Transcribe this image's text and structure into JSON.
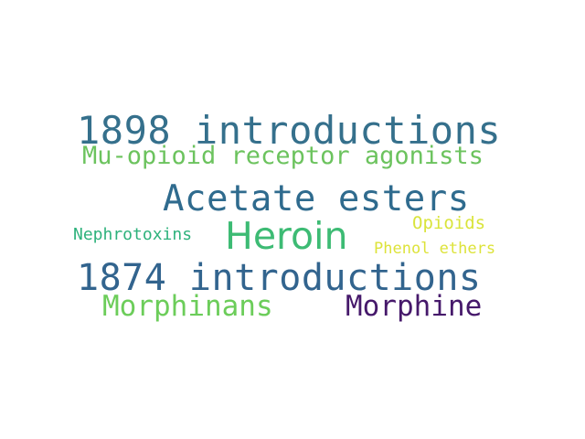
{
  "words": [
    {
      "text": "1898 introductions",
      "color": "#35708c"
    },
    {
      "text": "Mu-opioid receptor agonists",
      "color": "#6cc35e"
    },
    {
      "text": "Acetate esters",
      "color": "#2f6b8e"
    },
    {
      "text": "Heroin",
      "color": "#3dbb74"
    },
    {
      "text": "Nephrotoxins",
      "color": "#2eb27c"
    },
    {
      "text": "Opioids",
      "color": "#d9e43b"
    },
    {
      "text": "Phenol ethers",
      "color": "#dde33a"
    },
    {
      "text": "1874 introductions",
      "color": "#32648e"
    },
    {
      "text": "Morphinans",
      "color": "#6ccd5a"
    },
    {
      "text": "Morphine",
      "color": "#46196b"
    }
  ]
}
